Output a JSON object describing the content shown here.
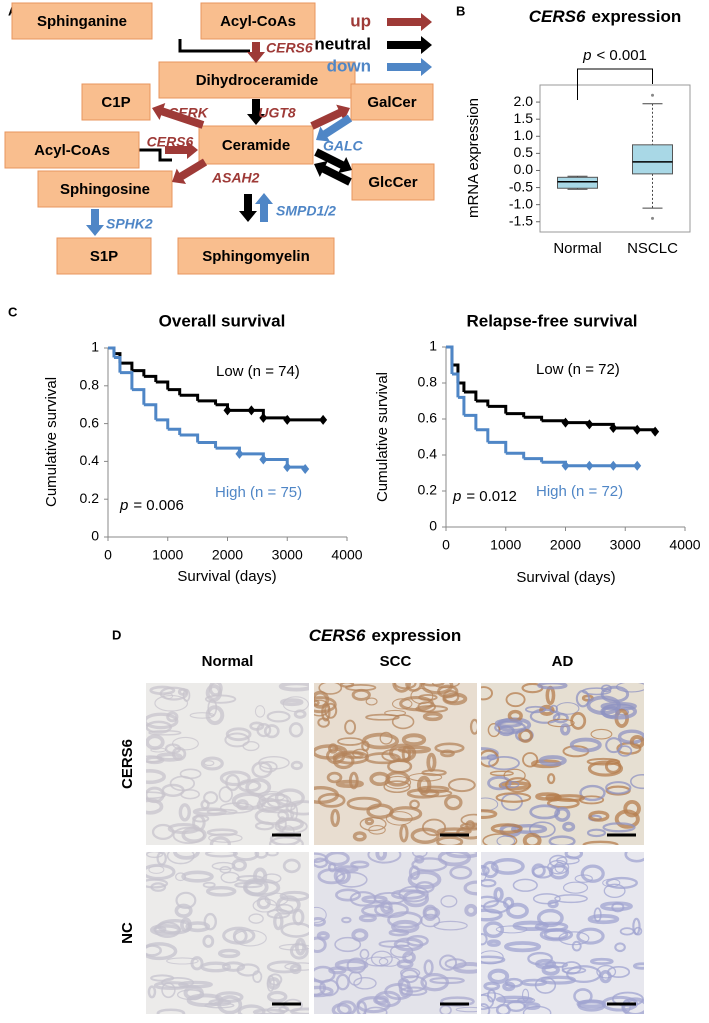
{
  "diagram": {
    "label": "A",
    "nodes": [
      "Sphinganine",
      "Acyl-CoAs",
      "Dihydroceramide",
      "C1P",
      "GalCer",
      "Acyl-CoAs",
      "Ceramide",
      "GlcCer",
      "Sphingosine",
      "S1P",
      "Sphingomyelin"
    ],
    "enzymes": [
      {
        "label": "CERS6",
        "direction": "up"
      },
      {
        "label": "CERK",
        "direction": "up"
      },
      {
        "label": "UGT8",
        "direction": "up"
      },
      {
        "label": "CERS6",
        "direction": "up"
      },
      {
        "label": "GALC",
        "direction": "down"
      },
      {
        "label": "ASAH2",
        "direction": "up"
      },
      {
        "label": "SPHK2",
        "direction": "down"
      },
      {
        "label": "SMPD1/2",
        "direction": "down"
      }
    ],
    "legend": [
      {
        "label": "up",
        "color": "#9e3a37"
      },
      {
        "label": "neutral",
        "color": "#000000"
      },
      {
        "label": "down",
        "color": "#4f86c6"
      }
    ]
  },
  "panel_labels": [
    "B",
    "C"
  ],
  "chart_data": [
    {
      "type": "box",
      "title_italic": "CERS6",
      "title": "expression",
      "ylabel": "mRNA expression",
      "categories": [
        "Normal",
        "NSCLC"
      ],
      "boxes": [
        {
          "whisker_low": -0.55,
          "q1": -0.52,
          "median": -0.33,
          "q3": -0.2,
          "whisker_high": -0.17
        },
        {
          "whisker_low": -1.1,
          "q1": -0.1,
          "median": 0.25,
          "q3": 0.75,
          "whisker_high": 1.95,
          "outliers": [
            2.2,
            -1.4
          ]
        }
      ],
      "color": "#a9d8e6",
      "ylim": [
        -1.8,
        2.5
      ],
      "yticks": [
        {
          "value": -1.5,
          "label": "-1.5"
        },
        {
          "value": -1,
          "label": "-1.0"
        },
        -0.5,
        {
          "value": 0,
          "label": "0.0"
        },
        0.5,
        {
          "value": 1,
          "label": "1.0"
        },
        1.5,
        {
          "value": 2,
          "label": "2.0"
        }
      ],
      "annotation_italic": "p",
      "annotation": "< 0.001"
    },
    {
      "type": "line",
      "title": "Overall survival",
      "xlabel": "Survival (days)",
      "ylabel": "Cumulative survival",
      "step": true,
      "xlim": [
        0,
        4000
      ],
      "xticks": [
        0,
        1000,
        2000,
        3000,
        4000
      ],
      "ylim": [
        0,
        1
      ],
      "yticks": [
        0,
        0.2,
        0.4,
        0.6,
        0.8,
        1
      ],
      "series": [
        {
          "name": "Low (n = 74)",
          "color": "#000000",
          "x": [
            0,
            100,
            200,
            400,
            600,
            800,
            1000,
            1200,
            1500,
            1800,
            2000,
            2400,
            2600,
            3000,
            3600
          ],
          "values": [
            1,
            0.97,
            0.92,
            0.88,
            0.85,
            0.82,
            0.78,
            0.75,
            0.72,
            0.7,
            0.67,
            0.67,
            0.63,
            0.62,
            0.62
          ]
        },
        {
          "name": "High (n = 75)",
          "color": "#4f86c6",
          "x": [
            0,
            100,
            200,
            400,
            600,
            800,
            1000,
            1200,
            1500,
            1800,
            2200,
            2600,
            3000,
            3300
          ],
          "values": [
            1,
            0.95,
            0.87,
            0.78,
            0.7,
            0.62,
            0.57,
            0.54,
            0.5,
            0.47,
            0.44,
            0.41,
            0.37,
            0.36
          ]
        }
      ],
      "annotation_italic": "p",
      "annotation": "= 0.006"
    },
    {
      "type": "line",
      "title": "Relapse-free survival",
      "xlabel": "Survival (days)",
      "ylabel": "Cumulative survival",
      "step": true,
      "xlim": [
        0,
        4000
      ],
      "xticks": [
        0,
        1000,
        2000,
        3000,
        4000
      ],
      "ylim": [
        0,
        1
      ],
      "yticks": [
        0,
        0.2,
        0.4,
        0.6,
        0.8,
        1
      ],
      "series": [
        {
          "name": "Low (n = 72)",
          "color": "#000000",
          "x": [
            0,
            100,
            200,
            300,
            500,
            700,
            1000,
            1300,
            1600,
            2000,
            2400,
            2800,
            3200,
            3500
          ],
          "values": [
            1,
            0.9,
            0.8,
            0.75,
            0.7,
            0.67,
            0.63,
            0.61,
            0.59,
            0.58,
            0.57,
            0.55,
            0.54,
            0.53
          ]
        },
        {
          "name": "High (n = 72)",
          "color": "#4f86c6",
          "x": [
            0,
            100,
            200,
            300,
            500,
            700,
            1000,
            1300,
            1600,
            2000,
            2400,
            2800,
            3200
          ],
          "values": [
            1,
            0.85,
            0.72,
            0.62,
            0.54,
            0.47,
            0.41,
            0.38,
            0.36,
            0.34,
            0.34,
            0.34,
            0.34
          ]
        }
      ],
      "annotation_italic": "p",
      "annotation": "= 0.012"
    }
  ],
  "histology": {
    "label": "D",
    "title_italic": "CERS6",
    "title": "expression",
    "columns": [
      "Normal",
      "SCC",
      "AD"
    ],
    "rows": [
      "CERS6",
      "NC"
    ]
  }
}
